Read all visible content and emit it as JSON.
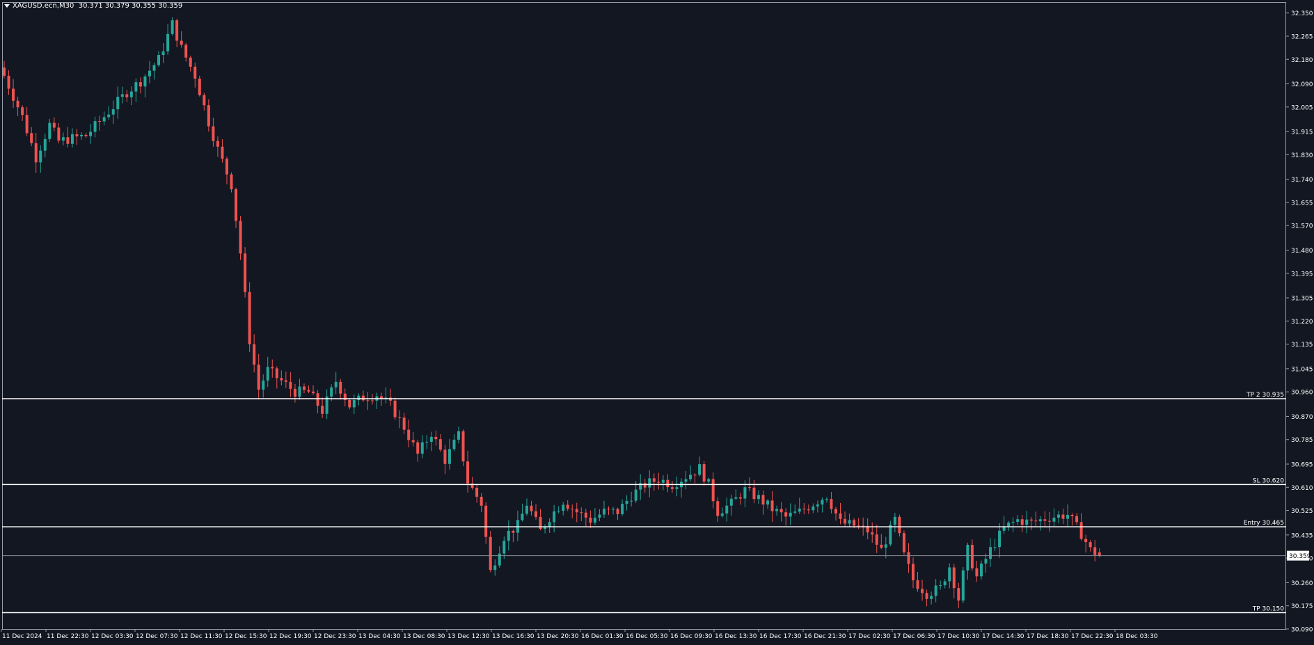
{
  "header": {
    "symbol": "XAGUSD.ecn,M30",
    "ohlc": "30.371 30.379 30.355 30.359"
  },
  "colors": {
    "background": "#131722",
    "bull": "#26a69a",
    "bear": "#ef5350",
    "text": "#ffffff",
    "line": "#ffffff"
  },
  "chart_data": {
    "type": "candlestick",
    "title": "XAGUSD.ecn,M30",
    "ylim": [
      30.09,
      32.39
    ],
    "y_ticks": [
      32.35,
      32.265,
      32.18,
      32.09,
      32.005,
      31.915,
      31.83,
      31.74,
      31.655,
      31.57,
      31.48,
      31.395,
      31.305,
      31.22,
      31.135,
      31.045,
      30.96,
      30.87,
      30.785,
      30.695,
      30.61,
      30.525,
      30.435,
      30.35,
      30.26,
      30.175,
      30.09
    ],
    "y_tick_labels": [
      "32.350",
      "32.265",
      "32.180",
      "32.090",
      "32.005",
      "31.915",
      "31.830",
      "31.740",
      "31.655",
      "31.570",
      "31.480",
      "31.395",
      "31.305",
      "31.220",
      "31.135",
      "31.045",
      "30.960",
      "30.870",
      "30.785",
      "30.695",
      "30.610",
      "30.525",
      "30.435",
      "30.350",
      "30.260",
      "30.175",
      "30.090"
    ],
    "x_labels": [
      "11 Dec 2024",
      "11 Dec 22:30",
      "12 Dec 03:30",
      "12 Dec 07:30",
      "12 Dec 11:30",
      "12 Dec 15:30",
      "12 Dec 19:30",
      "12 Dec 23:30",
      "13 Dec 04:30",
      "13 Dec 08:30",
      "13 Dec 12:30",
      "13 Dec 16:30",
      "13 Dec 20:30",
      "16 Dec 01:30",
      "16 Dec 05:30",
      "16 Dec 09:30",
      "16 Dec 13:30",
      "16 Dec 17:30",
      "16 Dec 21:30",
      "17 Dec 02:30",
      "17 Dec 06:30",
      "17 Dec 10:30",
      "17 Dec 14:30",
      "17 Dec 18:30",
      "17 Dec 22:30",
      "18 Dec 03:30"
    ],
    "current_price": 30.359,
    "current_price_label": "30.359",
    "levels": [
      {
        "label": "TP 2 30.935",
        "value": 30.935
      },
      {
        "label": "SL 30.620",
        "value": 30.62
      },
      {
        "label": "Entry 30.465",
        "value": 30.465
      },
      {
        "label": "TP 30.150",
        "value": 30.15
      }
    ],
    "waypoints": [
      [
        0,
        32.12
      ],
      [
        4,
        31.97
      ],
      [
        7,
        31.82
      ],
      [
        10,
        31.94
      ],
      [
        12,
        31.88
      ],
      [
        18,
        31.9
      ],
      [
        22,
        31.97
      ],
      [
        27,
        32.06
      ],
      [
        30,
        32.1
      ],
      [
        34,
        32.18
      ],
      [
        37,
        32.31
      ],
      [
        39,
        32.22
      ],
      [
        42,
        32.12
      ],
      [
        45,
        31.95
      ],
      [
        47,
        31.85
      ],
      [
        50,
        31.72
      ],
      [
        52,
        31.47
      ],
      [
        54,
        31.15
      ],
      [
        56,
        30.97
      ],
      [
        58,
        31.04
      ],
      [
        61,
        31.0
      ],
      [
        64,
        30.96
      ],
      [
        67,
        30.96
      ],
      [
        70,
        30.89
      ],
      [
        73,
        31.0
      ],
      [
        76,
        30.91
      ],
      [
        79,
        30.94
      ],
      [
        82,
        30.95
      ],
      [
        85,
        30.91
      ],
      [
        88,
        30.83
      ],
      [
        91,
        30.73
      ],
      [
        94,
        30.81
      ],
      [
        97,
        30.71
      ],
      [
        100,
        30.8
      ],
      [
        102,
        30.63
      ],
      [
        105,
        30.55
      ],
      [
        107,
        30.3
      ],
      [
        110,
        30.43
      ],
      [
        113,
        30.47
      ],
      [
        115,
        30.55
      ],
      [
        118,
        30.45
      ],
      [
        120,
        30.5
      ],
      [
        123,
        30.56
      ],
      [
        126,
        30.52
      ],
      [
        129,
        30.49
      ],
      [
        132,
        30.52
      ],
      [
        135,
        30.52
      ],
      [
        138,
        30.58
      ],
      [
        141,
        30.62
      ],
      [
        144,
        30.64
      ],
      [
        147,
        30.62
      ],
      [
        150,
        30.65
      ],
      [
        153,
        30.68
      ],
      [
        155,
        30.62
      ],
      [
        157,
        30.52
      ],
      [
        160,
        30.55
      ],
      [
        163,
        30.6
      ],
      [
        166,
        30.57
      ],
      [
        169,
        30.53
      ],
      [
        172,
        30.5
      ],
      [
        175,
        30.52
      ],
      [
        178,
        30.55
      ],
      [
        181,
        30.58
      ],
      [
        184,
        30.48
      ],
      [
        187,
        30.47
      ],
      [
        190,
        30.45
      ],
      [
        193,
        30.38
      ],
      [
        196,
        30.49
      ],
      [
        198,
        30.36
      ],
      [
        200,
        30.27
      ],
      [
        203,
        30.22
      ],
      [
        206,
        30.24
      ],
      [
        208,
        30.32
      ],
      [
        210,
        30.2
      ],
      [
        212,
        30.38
      ],
      [
        214,
        30.28
      ],
      [
        217,
        30.38
      ],
      [
        220,
        30.46
      ],
      [
        223,
        30.49
      ],
      [
        226,
        30.48
      ],
      [
        230,
        30.5
      ],
      [
        234,
        30.51
      ],
      [
        237,
        30.44
      ],
      [
        239,
        30.38
      ],
      [
        241,
        30.36
      ]
    ]
  }
}
